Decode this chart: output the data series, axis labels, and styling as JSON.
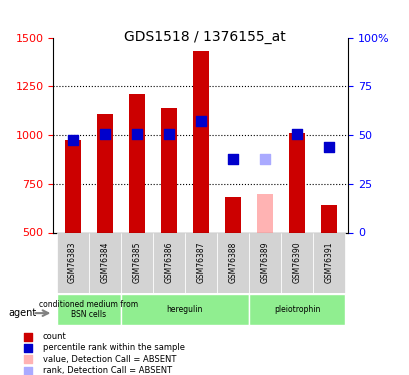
{
  "title": "GDS1518 / 1376155_at",
  "samples": [
    "GSM76383",
    "GSM76384",
    "GSM76385",
    "GSM76386",
    "GSM76387",
    "GSM76388",
    "GSM76389",
    "GSM76390",
    "GSM76391"
  ],
  "bar_values": [
    975,
    1110,
    1210,
    1140,
    1430,
    680,
    null,
    1010,
    640
  ],
  "bar_absent_values": [
    null,
    null,
    null,
    null,
    null,
    null,
    700,
    null,
    null
  ],
  "blue_dots": [
    975,
    1005,
    1005,
    1005,
    1070,
    875,
    null,
    1005,
    940
  ],
  "blue_absent_dots": [
    null,
    null,
    null,
    null,
    null,
    null,
    875,
    null,
    null
  ],
  "bar_color": "#cc0000",
  "bar_absent_color": "#ffb3b3",
  "blue_color": "#0000cc",
  "blue_absent_color": "#aaaaff",
  "ylim_left": [
    500,
    1500
  ],
  "ylim_right": [
    0,
    100
  ],
  "yticks_left": [
    500,
    750,
    1000,
    1250,
    1500
  ],
  "yticks_right": [
    0,
    25,
    50,
    75,
    100
  ],
  "groups": [
    {
      "label": "conditioned medium from\nBSN cells",
      "start": 0,
      "end": 2,
      "color": "#90ee90"
    },
    {
      "label": "heregulin",
      "start": 2,
      "end": 6,
      "color": "#90ee90"
    },
    {
      "label": "pleiotrophin",
      "start": 6,
      "end": 9,
      "color": "#90ee90"
    }
  ],
  "agent_label": "agent",
  "bar_width": 0.5,
  "dot_size": 60,
  "background_color": "#ffffff",
  "plot_bg": "#ffffff"
}
